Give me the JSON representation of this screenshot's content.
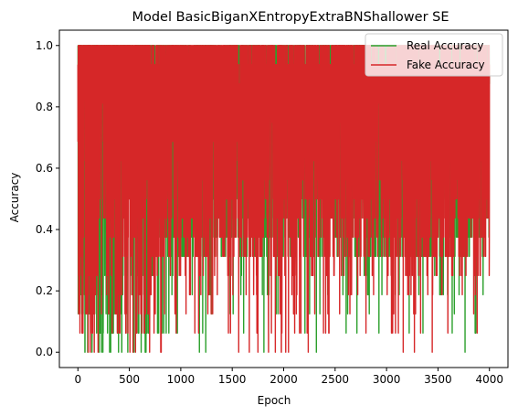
{
  "chart_data": {
    "type": "line",
    "title": "Model BasicBiganXEntropyExtraBNShallower SE",
    "xlabel": "Epoch",
    "ylabel": "Accuracy",
    "xlim": [
      -180,
      4180
    ],
    "ylim": [
      -0.05,
      1.05
    ],
    "xticks": [
      0,
      500,
      1000,
      1500,
      2000,
      2500,
      3000,
      3500,
      4000
    ],
    "yticks": [
      0.0,
      0.2,
      0.4,
      0.6,
      0.8,
      1.0
    ],
    "ytick_labels": [
      "0.0",
      "0.2",
      "0.4",
      "0.6",
      "0.8",
      "1.0"
    ],
    "legend_position": "top-right",
    "grid": false,
    "series": [
      {
        "name": "Real Accuracy",
        "color": "#2ca02c",
        "x_range": [
          0,
          4000
        ],
        "value_min": 0.0,
        "value_max": 1.0,
        "value_step": 0.0625,
        "description_values": "rapidly oscillating between 0.0 and 1.0 each epoch, mostly within 0.25 and 1.0"
      },
      {
        "name": "Fake Accuracy",
        "color": "#d62728",
        "x_range": [
          0,
          4000
        ],
        "value_min": 0.0,
        "value_max": 1.0,
        "value_step": 0.0625,
        "description_values": "rapidly oscillating between 0.0 and 1.0 each epoch, mostly within 0.19 and 1.0"
      }
    ]
  }
}
